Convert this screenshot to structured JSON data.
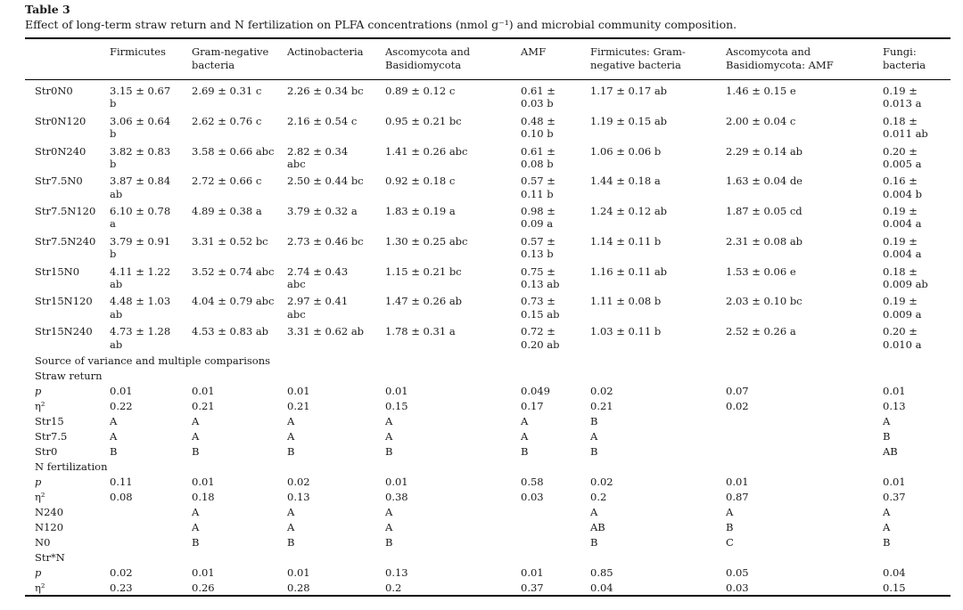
{
  "title": "Table 3",
  "caption": "Effect of long-term straw return and N fertilization on PLFA concentrations (nmol g⁻¹) and microbial community composition.",
  "table": {
    "columns": [
      "",
      "Firmicutes",
      "Gram-negative bacteria",
      "Actinobacteria",
      "Ascomycota and Basidiomycota",
      "AMF",
      "Firmicutes: Gram-negative bacteria",
      "Ascomycota and Basidiomycota: AMF",
      "Fungi: bacteria"
    ],
    "rows": [
      {
        "type": "data",
        "label": "Str0N0",
        "cells": [
          "3.15 ± 0.67\nb",
          "2.69 ± 0.31 c",
          "2.26 ± 0.34 bc",
          "0.89 ± 0.12 c",
          "0.61 ±\n0.03 b",
          "1.17 ± 0.17 ab",
          "1.46 ± 0.15 e",
          "0.19 ±\n0.013 a"
        ]
      },
      {
        "type": "data",
        "label": "Str0N120",
        "cells": [
          "3.06 ± 0.64\nb",
          "2.62 ± 0.76 c",
          "2.16 ± 0.54 c",
          "0.95 ± 0.21 bc",
          "0.48 ±\n0.10 b",
          "1.19 ± 0.15 ab",
          "2.00 ± 0.04 c",
          "0.18 ±\n0.011 ab"
        ]
      },
      {
        "type": "data",
        "label": "Str0N240",
        "cells": [
          "3.82 ± 0.83\nb",
          "3.58 ± 0.66 abc",
          "2.82 ± 0.34\nabc",
          "1.41 ± 0.26 abc",
          "0.61 ±\n0.08 b",
          "1.06 ± 0.06 b",
          "2.29 ± 0.14 ab",
          "0.20 ±\n0.005 a"
        ]
      },
      {
        "type": "data",
        "label": "Str7.5N0",
        "cells": [
          "3.87 ± 0.84\nab",
          "2.72 ± 0.66 c",
          "2.50 ± 0.44 bc",
          "0.92 ± 0.18 c",
          "0.57 ±\n0.11 b",
          "1.44 ± 0.18 a",
          "1.63 ± 0.04 de",
          "0.16 ±\n0.004 b"
        ]
      },
      {
        "type": "data",
        "label": "Str7.5N120",
        "cells": [
          "6.10 ± 0.78\na",
          "4.89 ± 0.38 a",
          "3.79 ± 0.32 a",
          "1.83 ± 0.19 a",
          "0.98 ±\n0.09 a",
          "1.24 ± 0.12 ab",
          "1.87 ± 0.05 cd",
          "0.19 ±\n0.004 a"
        ]
      },
      {
        "type": "data",
        "label": "Str7.5N240",
        "cells": [
          "3.79 ± 0.91\nb",
          "3.31 ± 0.52 bc",
          "2.73 ± 0.46 bc",
          "1.30 ± 0.25 abc",
          "0.57 ±\n0.13 b",
          "1.14 ± 0.11 b",
          "2.31 ± 0.08 ab",
          "0.19 ±\n0.004 a"
        ]
      },
      {
        "type": "data",
        "label": "Str15N0",
        "cells": [
          "4.11 ± 1.22\nab",
          "3.52 ± 0.74 abc",
          "2.74 ± 0.43\nabc",
          "1.15 ± 0.21 bc",
          "0.75 ±\n0.13 ab",
          "1.16 ± 0.11 ab",
          "1.53 ± 0.06 e",
          "0.18 ±\n0.009 ab"
        ]
      },
      {
        "type": "data",
        "label": "Str15N120",
        "cells": [
          "4.48 ± 1.03\nab",
          "4.04 ± 0.79 abc",
          "2.97 ± 0.41\nabc",
          "1.47 ± 0.26 ab",
          "0.73 ±\n0.15 ab",
          "1.11 ± 0.08 b",
          "2.03 ± 0.10 bc",
          "0.19 ±\n0.009 a"
        ]
      },
      {
        "type": "data",
        "label": "Str15N240",
        "cells": [
          "4.73 ± 1.28\nab",
          "4.53 ± 0.83 ab",
          "3.31 ± 0.62 ab",
          "1.78 ± 0.31 a",
          "0.72 ±\n0.20 ab",
          "1.03 ± 0.11 b",
          "2.52 ± 0.26 a",
          "0.20 ±\n0.010 a"
        ]
      },
      {
        "type": "section",
        "label": "Source of variance and multiple comparisons"
      },
      {
        "type": "section",
        "label": "Straw return"
      },
      {
        "type": "stat",
        "italic": true,
        "label": "p",
        "cells": [
          "0.01",
          "0.01",
          "0.01",
          "0.01",
          "0.049",
          "0.02",
          "0.07",
          "0.01"
        ]
      },
      {
        "type": "stat",
        "label": "η²",
        "cells": [
          "0.22",
          "0.21",
          "0.21",
          "0.15",
          "0.17",
          "0.21",
          "0.02",
          "0.13"
        ]
      },
      {
        "type": "stat",
        "label": "Str15",
        "cells": [
          "A",
          "A",
          "A",
          "A",
          "A",
          "B",
          "",
          "A"
        ]
      },
      {
        "type": "stat",
        "label": "Str7.5",
        "cells": [
          "A",
          "A",
          "A",
          "A",
          "A",
          "A",
          "",
          "B"
        ]
      },
      {
        "type": "stat",
        "label": "Str0",
        "cells": [
          "B",
          "B",
          "B",
          "B",
          "B",
          "B",
          "",
          "AB"
        ]
      },
      {
        "type": "section",
        "label": "N fertilization"
      },
      {
        "type": "stat",
        "italic": true,
        "label": "p",
        "cells": [
          "0.11",
          "0.01",
          "0.02",
          "0.01",
          "0.58",
          "0.02",
          "0.01",
          "0.01"
        ]
      },
      {
        "type": "stat",
        "label": "η²",
        "cells": [
          "0.08",
          "0.18",
          "0.13",
          "0.38",
          "0.03",
          "0.2",
          "0.87",
          "0.37"
        ]
      },
      {
        "type": "stat",
        "label": "N240",
        "cells": [
          "",
          "A",
          "A",
          "A",
          "",
          "A",
          "A",
          "A"
        ]
      },
      {
        "type": "stat",
        "label": "N120",
        "cells": [
          "",
          "A",
          "A",
          "A",
          "",
          "AB",
          "B",
          "A"
        ]
      },
      {
        "type": "stat",
        "label": "N0",
        "cells": [
          "",
          "B",
          "B",
          "B",
          "",
          "B",
          "C",
          "B"
        ]
      },
      {
        "type": "section",
        "label": "Str*N"
      },
      {
        "type": "stat",
        "italic": true,
        "label": "p",
        "cells": [
          "0.02",
          "0.01",
          "0.01",
          "0.13",
          "0.01",
          "0.85",
          "0.05",
          "0.04"
        ]
      },
      {
        "type": "stat",
        "label": "η²",
        "cells": [
          "0.23",
          "0.26",
          "0.28",
          "0.2",
          "0.37",
          "0.04",
          "0.03",
          "0.15"
        ]
      }
    ]
  }
}
